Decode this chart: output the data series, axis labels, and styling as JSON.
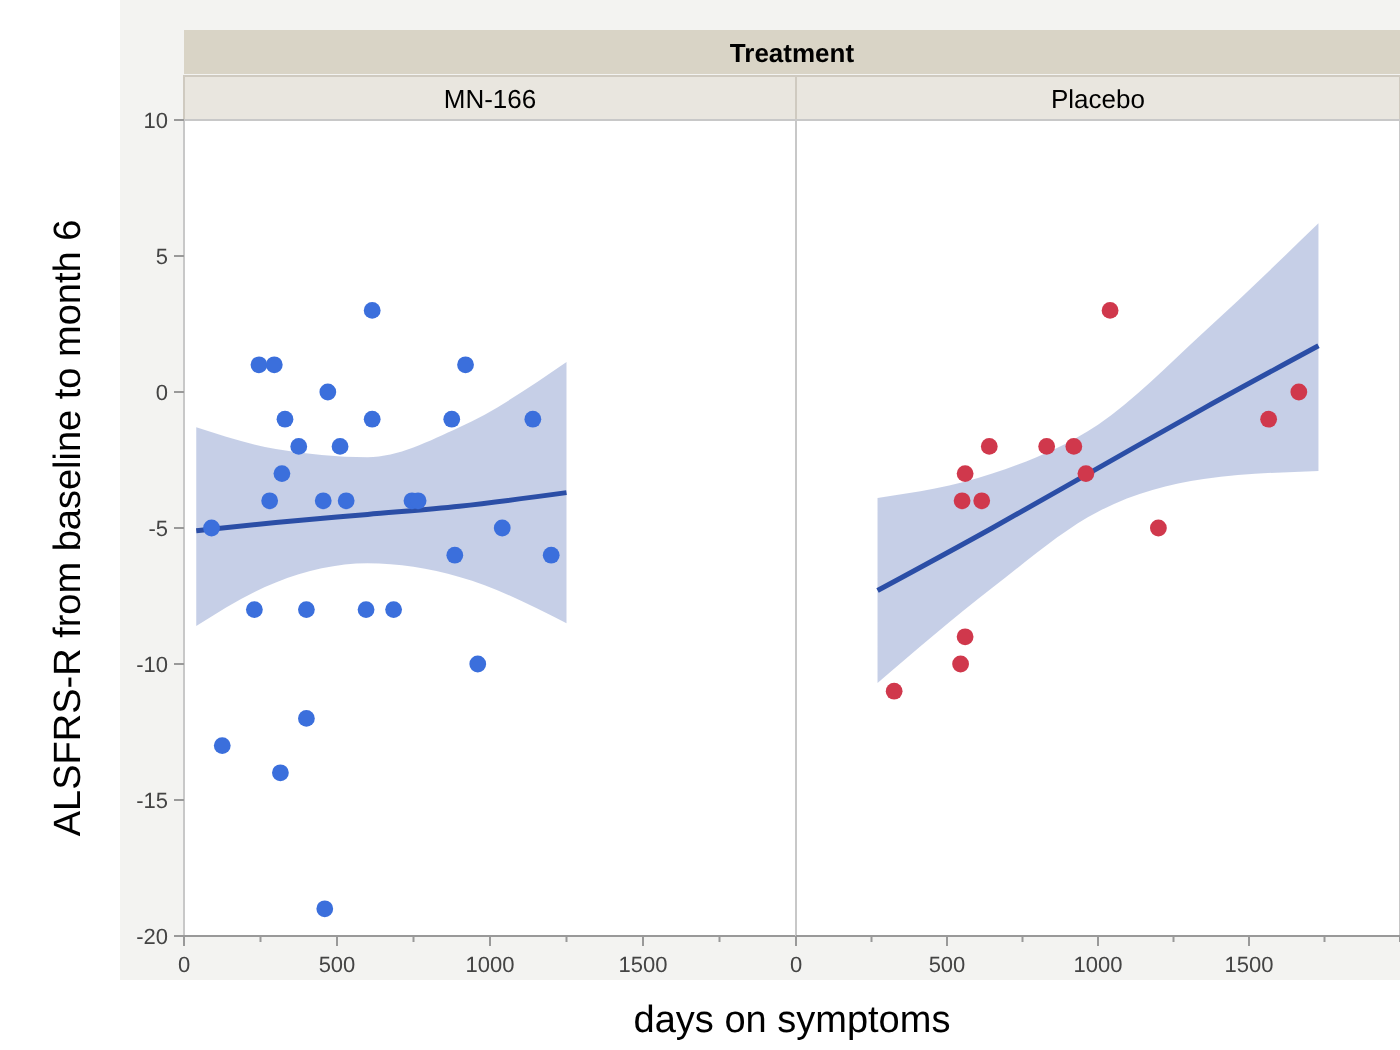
{
  "chart_data": [
    {
      "type": "scatter",
      "title": "MN-166",
      "annotations": [
        "Treatment"
      ],
      "xlabel": "days on symptoms",
      "ylabel": "ALSFRS-R from baseline to month 6",
      "xlim": [
        0,
        2000
      ],
      "xticks": [
        0,
        500,
        1000,
        1500
      ],
      "ylim": [
        -20,
        10
      ],
      "yticks": [
        -20,
        -15,
        -10,
        -5,
        0,
        5,
        10
      ],
      "grid": false,
      "marker": "circle",
      "series": [
        {
          "color": "#3b6fdc",
          "x": [
            90,
            125,
            230,
            245,
            295,
            280,
            320,
            330,
            315,
            375,
            400,
            400,
            455,
            470,
            460,
            530,
            510,
            615,
            615,
            595,
            685,
            745,
            765,
            875,
            885,
            920,
            960,
            1040,
            1140,
            1200
          ],
          "values": [
            -5,
            -13,
            -8,
            1,
            1,
            -4,
            -3,
            -1,
            -14,
            -2,
            -8,
            -12,
            -4,
            0,
            -19,
            -4,
            -2,
            -1,
            3,
            -8,
            -8,
            -4,
            -4,
            -1,
            -6,
            1,
            -10,
            -5,
            -1,
            -6
          ]
        },
        {
          "type": "line",
          "color": "#2b4ea6",
          "line_style": "solid",
          "marker": "none",
          "x": [
            40,
            300,
            600,
            900,
            1250
          ],
          "values": [
            -5.1,
            -4.8,
            -4.5,
            -4.2,
            -3.7
          ],
          "lower": [
            -8.6,
            -7.0,
            -6.3,
            -6.8,
            -8.5
          ],
          "upper": [
            -1.3,
            -2.1,
            -2.4,
            -1.3,
            1.1
          ]
        }
      ]
    },
    {
      "type": "scatter",
      "title": "Placebo",
      "xlim": [
        0,
        2000
      ],
      "xticks": [
        0,
        500,
        1000,
        1500
      ],
      "ylim": [
        -20,
        10
      ],
      "tick_labels": "x",
      "grid": false,
      "marker": "circle",
      "series": [
        {
          "color": "#d0384c",
          "x": [
            1040,
            1665,
            1565,
            640,
            830,
            920,
            960,
            560,
            550,
            615,
            1200,
            560,
            545,
            325
          ],
          "values": [
            3,
            0,
            -1,
            -2,
            -2,
            -2,
            -3,
            -3,
            -4,
            -4,
            -5,
            -9,
            -10,
            -11
          ]
        },
        {
          "type": "line",
          "color": "#2b4ea6",
          "line_style": "solid",
          "marker": "none",
          "x": [
            270,
            650,
            1000,
            1350,
            1730
          ],
          "values": [
            -7.3,
            -5.0,
            -2.8,
            -0.6,
            1.7
          ],
          "lower": [
            -10.7,
            -7.2,
            -4.4,
            -3.2,
            -2.9
          ],
          "upper": [
            -3.9,
            -3.0,
            -1.2,
            2.2,
            6.2
          ]
        }
      ]
    }
  ]
}
